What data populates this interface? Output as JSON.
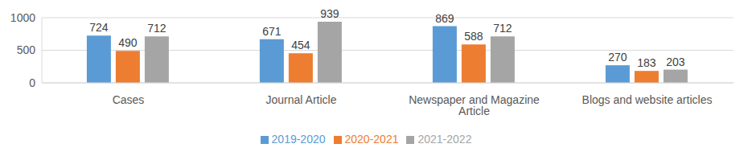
{
  "chart_data": {
    "type": "bar",
    "categories": [
      "Cases",
      "Journal Article",
      "Newspaper and Magazine Article",
      "Blogs and website articles"
    ],
    "series": [
      {
        "name": "2019-2020",
        "color": "#5b9bd5",
        "values": [
          724,
          671,
          869,
          270
        ]
      },
      {
        "name": "2020-2021",
        "color": "#ed7d31",
        "values": [
          490,
          454,
          588,
          183
        ]
      },
      {
        "name": "2021-2022",
        "color": "#a5a5a5",
        "values": [
          712,
          939,
          712,
          203
        ]
      }
    ],
    "ylim": [
      0,
      1000
    ],
    "yticks": [
      0,
      500,
      1000
    ],
    "grid": true,
    "legend": "bottom",
    "data_labels": true
  }
}
